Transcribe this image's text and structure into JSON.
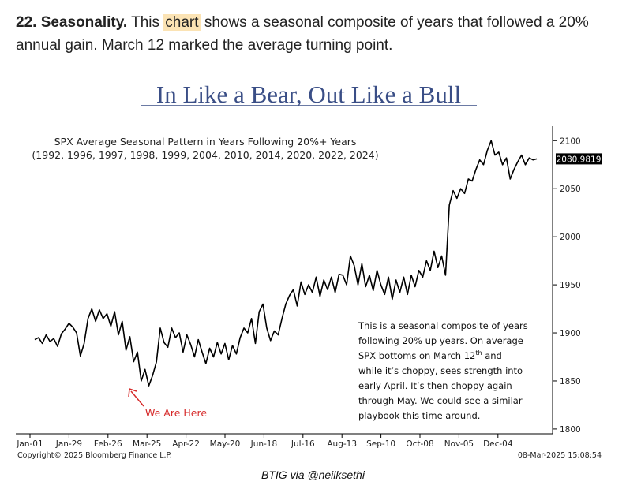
{
  "intro": {
    "number": "22. Seasonality.",
    "before_highlight": "This",
    "highlight": "chart",
    "after_highlight": "shows a seasonal composite of years that followed a 20% annual gain. March 12 marked the average turning point."
  },
  "caption_link": "BTIG via @neilksethi",
  "chart_data": {
    "type": "line",
    "title": "In Like a Bear, Out Like a Bull",
    "subtitle_line1": "SPX Average Seasonal Pattern in Years Following 20%+ Years",
    "subtitle_line2": "(1992, 1996, 1997, 1998, 1999, 2004, 2010, 2014, 2020, 2022, 2024)",
    "x_ticks": [
      "Jan-01",
      "Jan-29",
      "Feb-26",
      "Mar-25",
      "Apr-22",
      "May-20",
      "Jun-18",
      "Jul-16",
      "Aug-13",
      "Sep-10",
      "Oct-08",
      "Nov-05",
      "Dec-04"
    ],
    "y_ticks": [
      1800,
      1850,
      1900,
      1950,
      2000,
      2050,
      2100
    ],
    "ylim": [
      1795,
      2115
    ],
    "last_value_label": "2080.9819",
    "series": [
      {
        "x": [
          0,
          0.1,
          0.2,
          0.3,
          0.4,
          0.5,
          0.6,
          0.7,
          0.8,
          0.9,
          1,
          1.1,
          1.2,
          1.3,
          1.4,
          1.5,
          1.6,
          1.7,
          1.8,
          1.9,
          2,
          2.1,
          2.2,
          2.3,
          2.4,
          2.5,
          2.6,
          2.7,
          2.8,
          2.9,
          3,
          3.1,
          3.2,
          3.3,
          3.4,
          3.5,
          3.6,
          3.7,
          3.8,
          3.9,
          4,
          4.1,
          4.2,
          4.3,
          4.4,
          4.5,
          4.6,
          4.7,
          4.8,
          4.9,
          5,
          5.1,
          5.2,
          5.3,
          5.4,
          5.5,
          5.6,
          5.7,
          5.8,
          5.9,
          6,
          6.1,
          6.2,
          6.3,
          6.4,
          6.5,
          6.6,
          6.7,
          6.8,
          6.9,
          7,
          7.1,
          7.2,
          7.3,
          7.4,
          7.5,
          7.6,
          7.7,
          7.8,
          7.9,
          8,
          8.1,
          8.2,
          8.3,
          8.4,
          8.5,
          8.6,
          8.7,
          8.8,
          8.9,
          9,
          9.1,
          9.2,
          9.3,
          9.4,
          9.5,
          9.6,
          9.7,
          9.8,
          9.9,
          10,
          10.1,
          10.2,
          10.3,
          10.4,
          10.5,
          10.6,
          10.7,
          10.8,
          10.9,
          11,
          11.1,
          11.2,
          11.3,
          11.4,
          11.5,
          11.6,
          11.7,
          11.8,
          11.9,
          12,
          12.1,
          12.2,
          12.3,
          12.4,
          12.5,
          12.6,
          12.7,
          12.8,
          12.9,
          13,
          13.1,
          13.2
        ],
        "values": [
          1893,
          1895,
          1889,
          1898,
          1891,
          1894,
          1886,
          1899,
          1904,
          1910,
          1906,
          1900,
          1876,
          1889,
          1915,
          1925,
          1912,
          1924,
          1915,
          1920,
          1907,
          1922,
          1898,
          1912,
          1882,
          1896,
          1870,
          1880,
          1850,
          1862,
          1845,
          1856,
          1870,
          1905,
          1890,
          1885,
          1905,
          1895,
          1900,
          1880,
          1898,
          1888,
          1875,
          1893,
          1880,
          1868,
          1884,
          1875,
          1890,
          1878,
          1889,
          1872,
          1887,
          1878,
          1895,
          1905,
          1900,
          1915,
          1889,
          1922,
          1930,
          1905,
          1892,
          1902,
          1898,
          1915,
          1930,
          1939,
          1945,
          1928,
          1953,
          1940,
          1950,
          1942,
          1958,
          1938,
          1955,
          1945,
          1958,
          1942,
          1961,
          1960,
          1950,
          1980,
          1970,
          1950,
          1972,
          1948,
          1960,
          1944,
          1965,
          1950,
          1940,
          1958,
          1935,
          1955,
          1942,
          1958,
          1940,
          1960,
          1948,
          1965,
          1958,
          1975,
          1965,
          1985,
          1968,
          1980,
          1960,
          2033,
          2048,
          2040,
          2050,
          2045,
          2060,
          2058,
          2070,
          2080,
          2075,
          2090,
          2100,
          2085,
          2088,
          2075,
          2082,
          2060,
          2070,
          2078,
          2085,
          2075,
          2082,
          2080,
          2081
        ]
      }
    ],
    "annotation_text": [
      "This is a seasonal composite of years",
      "following 20% up years. On average",
      "SPX bottoms on March 12",
      "th",
      " and",
      "while it’s choppy, sees strength into",
      "early April. It’s then choppy again",
      "through May. We could see a similar",
      "playbook this time around."
    ],
    "arrow_label": "We Are Here",
    "footer_left": "Copyright© 2025 Bloomberg Finance L.P.",
    "footer_right": "08-Mar-2025 15:08:54",
    "colors": {
      "title": "#3a4e86",
      "line": "#000000",
      "arrow": "#d62a2a",
      "label_box": "#000000"
    }
  }
}
